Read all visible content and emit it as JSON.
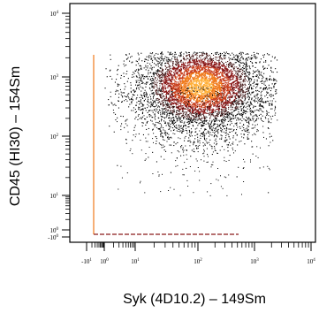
{
  "chart_data": {
    "type": "scatter",
    "subtype": "flow-cytometry-density-dotplot",
    "xlabel": "Syk (4D10.2) – 149Sm",
    "ylabel": "CD45 (HI30) – 154Sm",
    "x_scale": "arcsinh",
    "y_scale": "arcsinh",
    "xlim": [
      -10,
      10000
    ],
    "ylim": [
      -1,
      10000
    ],
    "x_ticks": [
      {
        "value": -10,
        "base": "-10",
        "exp": "1"
      },
      {
        "value": 1,
        "base": "10",
        "exp": "0"
      },
      {
        "value": 10,
        "base": "10",
        "exp": "1"
      },
      {
        "value": 100,
        "base": "10",
        "exp": "2"
      },
      {
        "value": 1000,
        "base": "10",
        "exp": "3"
      },
      {
        "value": 10000,
        "base": "10",
        "exp": "4"
      }
    ],
    "y_ticks": [
      {
        "value": 10000,
        "base": "10",
        "exp": "4"
      },
      {
        "value": 1000,
        "base": "10",
        "exp": "3"
      },
      {
        "value": 100,
        "base": "10",
        "exp": "2"
      },
      {
        "value": 10,
        "base": "10",
        "exp": "1"
      },
      {
        "value": 1,
        "base": "10",
        "exp": "0"
      },
      {
        "value": -1,
        "base": "-10",
        "exp": "0"
      }
    ],
    "main_population": {
      "x_center": 110,
      "y_center": 700,
      "x_range": [
        1,
        2500
      ],
      "y_range": [
        10,
        2500
      ]
    },
    "density_colors": [
      "#000000",
      "#3a0b0b",
      "#8b1a1a",
      "#c9401e",
      "#f07a1c",
      "#ffb03a"
    ],
    "grid": false,
    "legend": "none"
  }
}
